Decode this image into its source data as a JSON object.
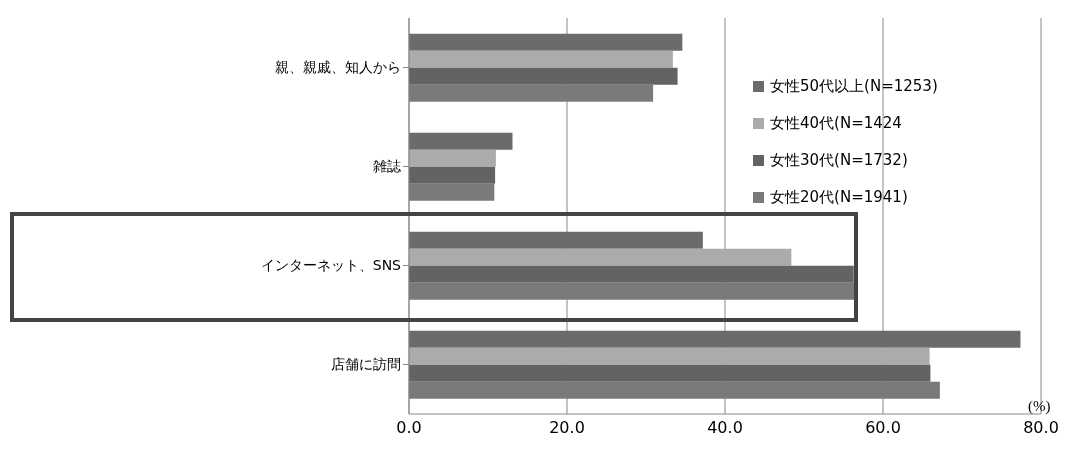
{
  "chart_data": {
    "type": "bar",
    "orientation": "horizontal",
    "xlabel": "(%)",
    "categories": [
      "親、親戚、知人から",
      "雑誌",
      "インターネット、SNS",
      "店舗に訪問"
    ],
    "series": [
      {
        "name": "女性50代以上(N=1253)",
        "color": "#6b6b6b",
        "values": [
          34.6,
          13.1,
          37.2,
          77.4
        ]
      },
      {
        "name": "女性40代(N=1424",
        "color": "#ababab",
        "values": [
          33.4,
          11.0,
          48.4,
          65.9
        ]
      },
      {
        "name": "女性30代(N=1732)",
        "color": "#636363",
        "values": [
          34.0,
          10.9,
          56.3,
          66.0
        ]
      },
      {
        "name": "女性20代(N=1941)",
        "color": "#7a7a7a",
        "values": [
          30.9,
          10.8,
          56.4,
          67.2
        ]
      }
    ],
    "xlim": [
      0,
      80
    ],
    "xticks": [
      {
        "value": 0,
        "label": "0.0"
      },
      {
        "value": 20,
        "label": "20.0"
      },
      {
        "value": 40,
        "label": "40.0"
      },
      {
        "value": 60,
        "label": "60.0"
      },
      {
        "value": 80,
        "label": "80.0"
      }
    ],
    "grid": "x",
    "legend": "right"
  }
}
